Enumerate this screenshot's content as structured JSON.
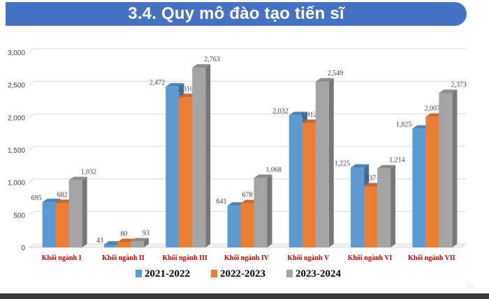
{
  "slide": {
    "title": "3.4. Quy mô đào tạo tiến sĩ",
    "page_number": "20"
  },
  "chart_data": {
    "type": "bar",
    "categories": [
      "Khối ngành I",
      "Khối ngành II",
      "Khối ngành III",
      "Khối ngành IV",
      "Khối ngành V",
      "Khối ngành VI",
      "Khối ngành VII"
    ],
    "series": [
      {
        "name": "2021-2022",
        "color": "#5B9BD5",
        "values": [
          695,
          43,
          2472,
          641,
          2032,
          1225,
          1825
        ],
        "labels": [
          "695",
          "43",
          "2,472",
          "641",
          "2,032",
          "1,225",
          "1,825"
        ]
      },
      {
        "name": "2022-2023",
        "color": "#ED7D31",
        "values": [
          682,
          80,
          2310,
          678,
          1912,
          937,
          2007
        ],
        "labels": [
          "682",
          "80",
          "2,310",
          "678",
          "1,912",
          "937",
          "2,007"
        ]
      },
      {
        "name": "2023-2024",
        "color": "#A5A5A5",
        "values": [
          1032,
          93,
          2763,
          1068,
          2549,
          1214,
          2373
        ],
        "labels": [
          "1,032",
          "93",
          "2,763",
          "1,068",
          "2,549",
          "1,214",
          "2,373"
        ]
      }
    ],
    "ylim": [
      0,
      3000
    ],
    "yticks": [
      0,
      500,
      1000,
      1500,
      2000,
      2500,
      3000
    ],
    "ytick_labels": [
      "0",
      "500",
      "1,000",
      "1,500",
      "2,000",
      "2,500",
      "3,000"
    ],
    "grid": true,
    "legend_position": "bottom",
    "category_label_color": "#C00000"
  }
}
